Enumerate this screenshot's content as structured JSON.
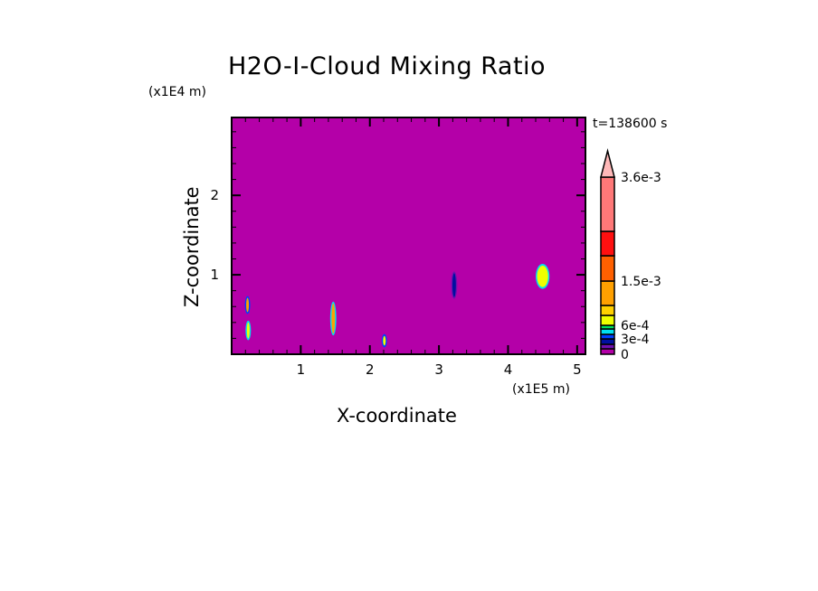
{
  "chart_data": {
    "type": "heatmap",
    "title": "H2O-I-Cloud Mixing Ratio",
    "xlabel": "X-coordinate",
    "ylabel": "Z-coordinate",
    "x_scale_label": "(x1E5 m)",
    "y_scale_label": "(x1E4 m)",
    "time_label": "t=138600 s",
    "xlim": [
      0,
      5.12
    ],
    "ylim": [
      0,
      2.98
    ],
    "x_ticks": [
      "1",
      "2",
      "3",
      "4",
      "5"
    ],
    "y_ticks": [
      "1",
      "2"
    ],
    "background_value": 0,
    "background_color": "#b400a8",
    "colorbar": {
      "colors": [
        "#b400a8",
        "#7010b0",
        "#0010a0",
        "#0040ff",
        "#00e0f0",
        "#00e060",
        "#f0ff00",
        "#ffd000",
        "#ffa000",
        "#ff6000",
        "#ff1010",
        "#ff7878"
      ],
      "extend_color": "#ffb8b8",
      "labels": [
        {
          "text": "0",
          "band": 0
        },
        {
          "text": "3e-4",
          "band": 3
        },
        {
          "text": "6e-4",
          "band": 6
        },
        {
          "text": "1.5e-3",
          "band": 9
        },
        {
          "text": "3.6e-3",
          "band": 12
        }
      ]
    },
    "features": [
      {
        "x": 0.23,
        "z": 0.62,
        "w": 0.03,
        "h": 0.18,
        "color": "#ffa000",
        "edge": "#0040ff"
      },
      {
        "x": 0.24,
        "z": 0.3,
        "w": 0.03,
        "h": 0.2,
        "color": "#f0ff00",
        "edge": "#00e0f0"
      },
      {
        "x": 1.47,
        "z": 0.45,
        "w": 0.05,
        "h": 0.38,
        "color": "#ffa000",
        "edge": "#00e0f0"
      },
      {
        "x": 2.21,
        "z": 0.17,
        "w": 0.02,
        "h": 0.12,
        "color": "#f0ff00",
        "edge": "#0040ff"
      },
      {
        "x": 3.22,
        "z": 0.87,
        "w": 0.05,
        "h": 0.3,
        "color": "#0010a0",
        "edge": "#7010b0"
      },
      {
        "x": 4.5,
        "z": 0.98,
        "w": 0.16,
        "h": 0.27,
        "color": "#f0ff00",
        "edge": "#00e0f0"
      }
    ]
  }
}
